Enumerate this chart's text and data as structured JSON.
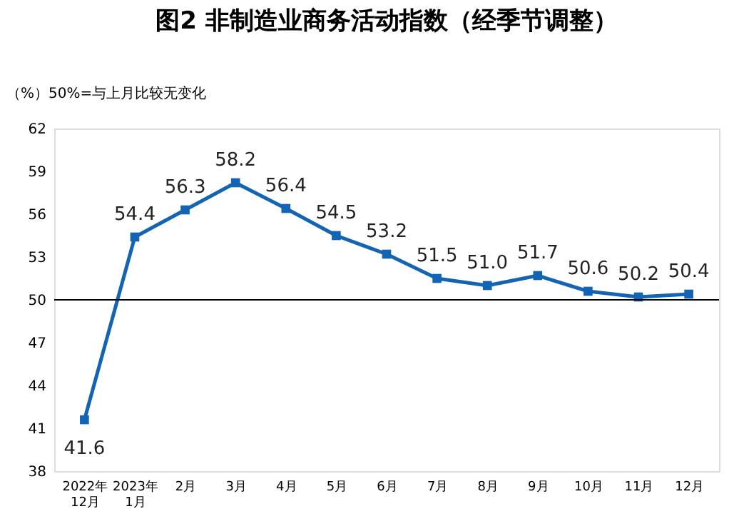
{
  "chart_data": {
    "type": "line",
    "title": "图2  非制造业商务活动指数（经季节调整）",
    "ylabel": "（%）50%=与上月比较无变化",
    "categories": [
      "2022年\n12月",
      "2023年\n1月",
      "2月",
      "3月",
      "4月",
      "5月",
      "6月",
      "7月",
      "8月",
      "9月",
      "10月",
      "11月",
      "12月"
    ],
    "series": [
      {
        "color": "#1464b4",
        "values": [
          41.6,
          54.4,
          56.3,
          58.2,
          56.4,
          54.5,
          53.2,
          51.5,
          51.0,
          51.7,
          50.6,
          50.2,
          50.4
        ],
        "value_labels": [
          "41.6",
          "54.4",
          "56.3",
          "58.2",
          "56.4",
          "54.5",
          "53.2",
          "51.5",
          "51.0",
          "51.7",
          "50.6",
          "50.2",
          "50.4"
        ]
      }
    ],
    "ylim": [
      38,
      62
    ],
    "yticks": [
      38,
      41,
      44,
      47,
      50,
      53,
      56,
      59,
      62
    ],
    "ref_lines": [
      {
        "axis": "y",
        "value": 50,
        "color": "#000000"
      }
    ],
    "marker": "square",
    "line_style": "solid",
    "grid": false,
    "legend": false
  }
}
